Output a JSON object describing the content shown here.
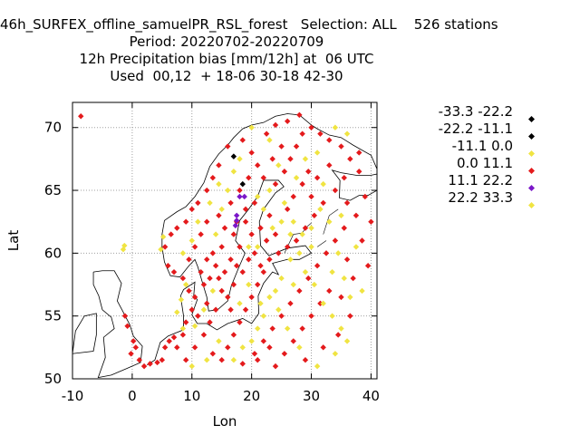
{
  "title": {
    "line1": "46h_SURFEX_offline_samuelPR_RSL_forest   Selection: ALL    526 stations",
    "line2": "Period: 20220702-20220709",
    "line3": "12h Precipitation bias [mm/12h] at  06 UTC",
    "line4": "Used  00,12  + 18-06 30-18 42-30"
  },
  "chart_data": {
    "type": "scatter",
    "xlabel": "Lon",
    "ylabel": "Lat",
    "xlim": [
      -10,
      41
    ],
    "ylim": [
      50,
      72
    ],
    "xticks": [
      -10,
      0,
      10,
      20,
      30,
      40
    ],
    "yticks": [
      50,
      55,
      60,
      65,
      70
    ],
    "grid": true,
    "legend_placement": "right",
    "legend": [
      {
        "label": "-33.3 -22.2",
        "color": "#000000"
      },
      {
        "label": "-22.2 -11.1",
        "color": "#000000"
      },
      {
        "label": "-11.1 0.0",
        "color": "#f0e442"
      },
      {
        "label": "0.0 11.1",
        "color": "#e41a1c"
      },
      {
        "label": "11.1 22.2",
        "color": "#7b17c9"
      },
      {
        "label": "22.2 33.3",
        "color": "#f0e442"
      }
    ],
    "series": [
      {
        "color": "#e41a1c",
        "points": [
          [
            -8.6,
            70.9
          ],
          [
            4.2,
            51.3
          ],
          [
            3.0,
            51.2
          ],
          [
            -0.8,
            54.2
          ],
          [
            -1.2,
            55.0
          ],
          [
            0.2,
            53.0
          ],
          [
            0.6,
            52.5
          ],
          [
            -0.2,
            52.0
          ],
          [
            1.2,
            51.5
          ],
          [
            2.0,
            51.0
          ],
          [
            5.0,
            51.5
          ],
          [
            5.5,
            52.5
          ],
          [
            6.2,
            53.0
          ],
          [
            7.0,
            53.3
          ],
          [
            7.5,
            52.5
          ],
          [
            8.5,
            53.5
          ],
          [
            9.0,
            54.5
          ],
          [
            10.0,
            55.5
          ],
          [
            10.5,
            56.5
          ],
          [
            9.5,
            57.0
          ],
          [
            11.0,
            55.0
          ],
          [
            12.5,
            56.0
          ],
          [
            12.0,
            57.5
          ],
          [
            11.5,
            58.5
          ],
          [
            12.5,
            59.5
          ],
          [
            13.5,
            60.0
          ],
          [
            14.5,
            58.0
          ],
          [
            15.0,
            57.0
          ],
          [
            16.0,
            56.5
          ],
          [
            17.5,
            59.0
          ],
          [
            18.0,
            60.5
          ],
          [
            17.0,
            61.5
          ],
          [
            15.5,
            62.0
          ],
          [
            14.5,
            63.0
          ],
          [
            16.5,
            64.0
          ],
          [
            18.0,
            65.0
          ],
          [
            19.5,
            66.0
          ],
          [
            21.0,
            67.0
          ],
          [
            20.0,
            68.0
          ],
          [
            18.5,
            69.0
          ],
          [
            16.0,
            68.5
          ],
          [
            14.5,
            67.0
          ],
          [
            13.5,
            66.0
          ],
          [
            12.5,
            65.0
          ],
          [
            11.0,
            64.0
          ],
          [
            10.0,
            63.5
          ],
          [
            9.0,
            62.5
          ],
          [
            7.5,
            62.0
          ],
          [
            6.5,
            61.5
          ],
          [
            5.5,
            60.5
          ],
          [
            6.0,
            59.0
          ],
          [
            7.0,
            58.5
          ],
          [
            8.5,
            58.0
          ],
          [
            9.5,
            59.5
          ],
          [
            10.5,
            60.5
          ],
          [
            11.5,
            61.5
          ],
          [
            12.5,
            62.5
          ],
          [
            24.0,
            65.5
          ],
          [
            25.5,
            66.5
          ],
          [
            26.5,
            67.5
          ],
          [
            27.5,
            68.5
          ],
          [
            28.5,
            69.5
          ],
          [
            30.0,
            70.0
          ],
          [
            31.5,
            69.5
          ],
          [
            33.0,
            69.0
          ],
          [
            35.0,
            68.5
          ],
          [
            36.5,
            67.5
          ],
          [
            38.0,
            66.5
          ],
          [
            35.5,
            66.0
          ],
          [
            34.0,
            65.0
          ],
          [
            32.0,
            64.0
          ],
          [
            30.5,
            63.0
          ],
          [
            29.0,
            62.0
          ],
          [
            27.5,
            61.0
          ],
          [
            26.0,
            60.5
          ],
          [
            24.5,
            60.0
          ],
          [
            23.0,
            59.5
          ],
          [
            22.0,
            58.5
          ],
          [
            21.0,
            57.5
          ],
          [
            20.0,
            56.5
          ],
          [
            19.0,
            55.5
          ],
          [
            18.0,
            54.5
          ],
          [
            17.0,
            53.5
          ],
          [
            16.0,
            52.5
          ],
          [
            15.0,
            51.5
          ],
          [
            20.5,
            52.0
          ],
          [
            22.0,
            53.0
          ],
          [
            23.5,
            54.0
          ],
          [
            25.0,
            55.0
          ],
          [
            26.5,
            56.0
          ],
          [
            28.0,
            57.0
          ],
          [
            29.5,
            58.0
          ],
          [
            31.0,
            59.0
          ],
          [
            32.5,
            60.0
          ],
          [
            34.0,
            61.0
          ],
          [
            35.5,
            62.0
          ],
          [
            36.0,
            59.5
          ],
          [
            37.0,
            58.0
          ],
          [
            33.0,
            57.0
          ],
          [
            31.5,
            56.0
          ],
          [
            30.0,
            55.0
          ],
          [
            28.5,
            54.0
          ],
          [
            27.0,
            53.0
          ],
          [
            25.5,
            52.0
          ],
          [
            24.0,
            51.0
          ],
          [
            29.0,
            51.5
          ],
          [
            32.0,
            52.5
          ],
          [
            34.5,
            53.5
          ],
          [
            36.5,
            55.0
          ],
          [
            35.0,
            56.5
          ],
          [
            26.0,
            63.5
          ],
          [
            27.0,
            64.5
          ],
          [
            28.5,
            65.5
          ],
          [
            29.5,
            66.5
          ],
          [
            23.0,
            63.0
          ],
          [
            21.5,
            62.0
          ],
          [
            20.0,
            61.5
          ],
          [
            19.0,
            62.5
          ],
          [
            22.5,
            61.0
          ],
          [
            24.0,
            61.5
          ],
          [
            16.5,
            55.5
          ],
          [
            14.0,
            55.5
          ],
          [
            13.0,
            54.5
          ],
          [
            12.0,
            53.5
          ],
          [
            10.5,
            52.5
          ],
          [
            9.0,
            51.5
          ],
          [
            13.5,
            52.0
          ],
          [
            18.5,
            51.2
          ],
          [
            21.0,
            51.5
          ],
          [
            23.0,
            52.5
          ],
          [
            22.5,
            69.5
          ],
          [
            24.0,
            70.2
          ],
          [
            26.0,
            70.5
          ],
          [
            28.0,
            71.0
          ],
          [
            25.0,
            68.5
          ],
          [
            23.5,
            67.5
          ],
          [
            22.0,
            66.0
          ],
          [
            20.5,
            64.0
          ],
          [
            19.0,
            63.5
          ],
          [
            17.5,
            62.5
          ],
          [
            15.0,
            60.5
          ],
          [
            16.5,
            59.5
          ],
          [
            14.0,
            59.0
          ],
          [
            13.0,
            58.0
          ],
          [
            15.5,
            58.5
          ],
          [
            17.0,
            57.5
          ],
          [
            18.5,
            58.5
          ],
          [
            19.5,
            59.5
          ],
          [
            20.5,
            60.0
          ],
          [
            21.5,
            59.0
          ],
          [
            33.0,
            67.0
          ],
          [
            31.0,
            66.0
          ],
          [
            30.0,
            64.5
          ],
          [
            36.0,
            64.0
          ],
          [
            37.5,
            63.0
          ],
          [
            38.5,
            61.0
          ],
          [
            39.5,
            59.0
          ],
          [
            40.0,
            62.5
          ],
          [
            39.0,
            64.5
          ],
          [
            38.0,
            68.0
          ]
        ]
      },
      {
        "color": "#f0e442",
        "points": [
          [
            -1.5,
            60.3
          ],
          [
            -1.3,
            60.6
          ],
          [
            4.8,
            60.3
          ],
          [
            5.2,
            61.3
          ],
          [
            7.5,
            55.3
          ],
          [
            8.2,
            56.3
          ],
          [
            9.0,
            57.5
          ],
          [
            8.5,
            54.0
          ],
          [
            10.5,
            54.2
          ],
          [
            12.0,
            55.5
          ],
          [
            13.5,
            57.0
          ],
          [
            14.0,
            61.5
          ],
          [
            15.0,
            63.5
          ],
          [
            16.0,
            65.0
          ],
          [
            17.0,
            66.5
          ],
          [
            18.0,
            67.5
          ],
          [
            20.0,
            70.0
          ],
          [
            23.0,
            69.0
          ],
          [
            24.5,
            67.0
          ],
          [
            25.5,
            64.0
          ],
          [
            27.0,
            62.5
          ],
          [
            28.0,
            60.0
          ],
          [
            29.0,
            58.5
          ],
          [
            30.5,
            57.5
          ],
          [
            32.0,
            56.0
          ],
          [
            33.5,
            55.0
          ],
          [
            35.0,
            54.0
          ],
          [
            36.0,
            53.0
          ],
          [
            34.0,
            52.0
          ],
          [
            31.0,
            51.0
          ],
          [
            28.0,
            52.5
          ],
          [
            26.0,
            54.0
          ],
          [
            24.5,
            55.5
          ],
          [
            23.0,
            56.5
          ],
          [
            22.0,
            55.0
          ],
          [
            21.0,
            54.0
          ],
          [
            20.0,
            53.0
          ],
          [
            18.5,
            52.5
          ],
          [
            17.0,
            51.5
          ],
          [
            14.5,
            53.0
          ],
          [
            12.5,
            51.5
          ],
          [
            10.0,
            51.0
          ],
          [
            25.0,
            58.0
          ],
          [
            26.5,
            59.5
          ],
          [
            28.5,
            61.5
          ],
          [
            30.0,
            62.0
          ],
          [
            31.5,
            63.5
          ],
          [
            33.0,
            62.5
          ],
          [
            34.5,
            60.0
          ],
          [
            35.5,
            58.0
          ],
          [
            36.5,
            56.5
          ],
          [
            37.5,
            60.5
          ],
          [
            38.5,
            57.0
          ],
          [
            33.5,
            58.5
          ],
          [
            30.0,
            60.5
          ],
          [
            27.0,
            57.5
          ],
          [
            24.0,
            57.0
          ],
          [
            21.5,
            56.0
          ],
          [
            19.5,
            57.5
          ],
          [
            18.0,
            56.0
          ],
          [
            22.0,
            63.5
          ],
          [
            21.0,
            64.5
          ],
          [
            23.0,
            65.0
          ],
          [
            27.5,
            66.0
          ],
          [
            29.0,
            67.5
          ],
          [
            31.0,
            68.0
          ],
          [
            34.0,
            70.0
          ],
          [
            36.0,
            69.5
          ],
          [
            32.0,
            65.5
          ],
          [
            35.0,
            63.0
          ],
          [
            19.5,
            60.5
          ],
          [
            21.0,
            60.5
          ],
          [
            23.5,
            62.0
          ],
          [
            25.0,
            62.5
          ],
          [
            26.5,
            61.5
          ],
          [
            11.0,
            62.5
          ],
          [
            10.0,
            61.0
          ],
          [
            8.5,
            60.0
          ],
          [
            13.0,
            64.0
          ],
          [
            14.5,
            65.5
          ]
        ]
      },
      {
        "color": "#000000",
        "points": [
          [
            17.0,
            67.7
          ],
          [
            18.5,
            65.5
          ]
        ]
      },
      {
        "color": "#7b17c9",
        "points": [
          [
            17.5,
            63.0
          ],
          [
            18.0,
            64.5
          ],
          [
            18.8,
            64.5
          ],
          [
            17.5,
            62.6
          ],
          [
            17.3,
            62.2
          ]
        ]
      }
    ]
  }
}
